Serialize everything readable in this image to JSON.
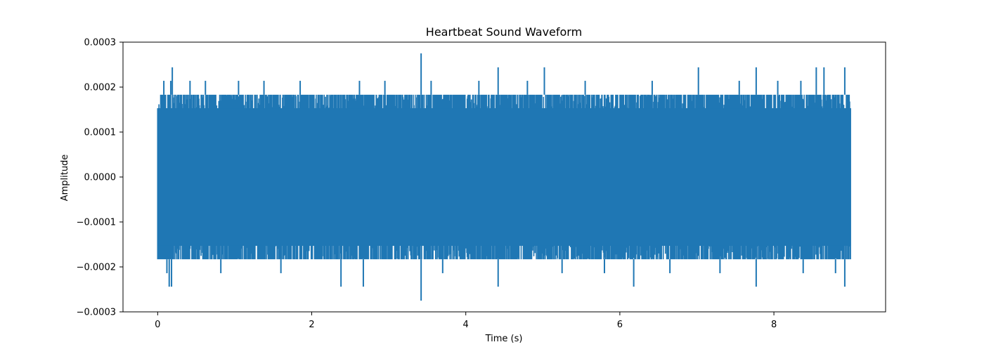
{
  "chart_data": {
    "type": "line",
    "title": "Heartbeat Sound Waveform",
    "xlabel": "Time (s)",
    "ylabel": "Amplitude",
    "xlim": [
      -0.45,
      9.45
    ],
    "ylim": [
      -0.0003,
      0.0003
    ],
    "xticks": [
      0,
      2,
      4,
      6,
      8
    ],
    "xtick_labels": [
      "0",
      "2",
      "4",
      "6",
      "8"
    ],
    "yticks": [
      -0.0003,
      -0.0002,
      -0.0001,
      0.0,
      0.0001,
      0.0002,
      0.0003
    ],
    "ytick_labels": [
      "−0.0003",
      "−0.0002",
      "−0.0001",
      "0.0000",
      "0.0001",
      "0.0002",
      "0.0003"
    ],
    "grid": false,
    "series": [
      {
        "color": "#1f77b4",
        "x_range": [
          0,
          9.0
        ],
        "typical_envelope": [
          -0.000183,
          0.000183
        ],
        "core_band": [
          -0.000153,
          0.000153
        ],
        "spikes": [
          {
            "x": 0.08,
            "y": 0.000214
          },
          {
            "x": 0.12,
            "y": -0.000214
          },
          {
            "x": 0.15,
            "y": -0.000244
          },
          {
            "x": 0.17,
            "y": 0.000214
          },
          {
            "x": 0.18,
            "y": -0.000244
          },
          {
            "x": 0.19,
            "y": 0.000244
          },
          {
            "x": 0.42,
            "y": 0.000214
          },
          {
            "x": 0.62,
            "y": 0.000214
          },
          {
            "x": 0.82,
            "y": -0.000214
          },
          {
            "x": 1.05,
            "y": 0.000214
          },
          {
            "x": 1.38,
            "y": 0.000214
          },
          {
            "x": 1.6,
            "y": -0.000214
          },
          {
            "x": 1.85,
            "y": 0.000214
          },
          {
            "x": 2.38,
            "y": -0.000244
          },
          {
            "x": 2.62,
            "y": 0.000214
          },
          {
            "x": 2.67,
            "y": -0.000244
          },
          {
            "x": 2.95,
            "y": 0.000214
          },
          {
            "x": 3.42,
            "y": 0.000275
          },
          {
            "x": 3.42,
            "y": -0.000275
          },
          {
            "x": 3.55,
            "y": 0.000214
          },
          {
            "x": 3.7,
            "y": -0.000214
          },
          {
            "x": 4.17,
            "y": 0.000214
          },
          {
            "x": 4.42,
            "y": 0.000244
          },
          {
            "x": 4.42,
            "y": -0.000244
          },
          {
            "x": 4.8,
            "y": 0.000214
          },
          {
            "x": 5.02,
            "y": 0.000244
          },
          {
            "x": 5.25,
            "y": -0.000214
          },
          {
            "x": 5.55,
            "y": 0.000214
          },
          {
            "x": 5.8,
            "y": -0.000214
          },
          {
            "x": 6.18,
            "y": -0.000244
          },
          {
            "x": 6.42,
            "y": 0.000214
          },
          {
            "x": 6.65,
            "y": -0.000214
          },
          {
            "x": 7.02,
            "y": 0.000244
          },
          {
            "x": 7.3,
            "y": -0.000214
          },
          {
            "x": 7.55,
            "y": 0.000214
          },
          {
            "x": 7.77,
            "y": 0.000244
          },
          {
            "x": 7.77,
            "y": -0.000244
          },
          {
            "x": 8.05,
            "y": 0.000214
          },
          {
            "x": 8.35,
            "y": 0.000214
          },
          {
            "x": 8.38,
            "y": -0.000214
          },
          {
            "x": 8.55,
            "y": 0.000244
          },
          {
            "x": 8.65,
            "y": 0.000244
          },
          {
            "x": 8.8,
            "y": -0.000214
          },
          {
            "x": 8.92,
            "y": 0.000244
          },
          {
            "x": 8.92,
            "y": -0.000244
          }
        ]
      }
    ]
  }
}
